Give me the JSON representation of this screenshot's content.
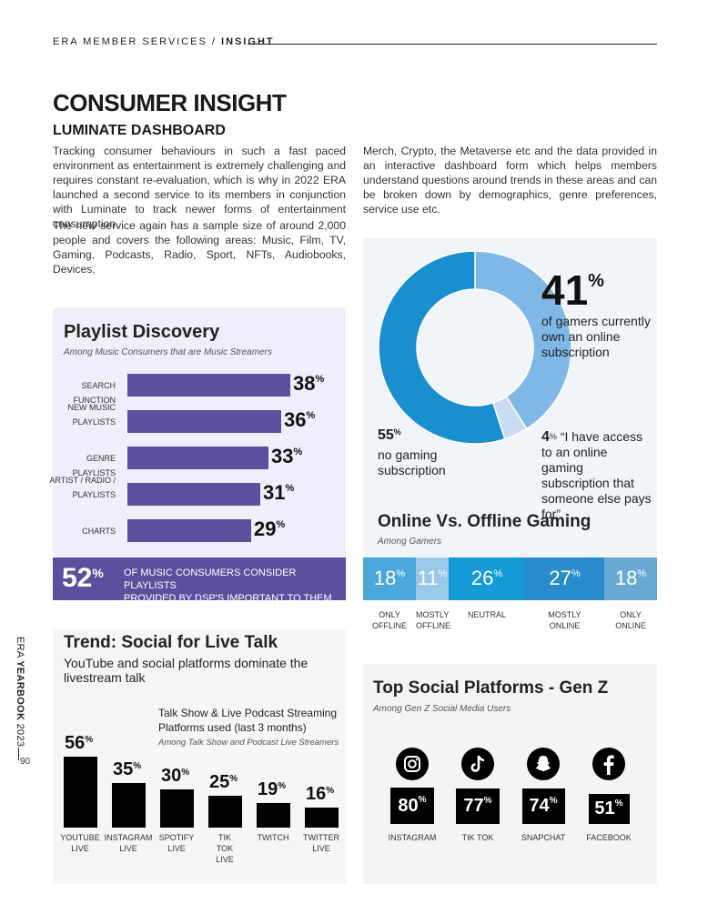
{
  "header": {
    "section": "ERA MEMBER SERVICES / ",
    "page": "INSIGHT"
  },
  "title": "CONSUMER INSIGHT",
  "subtitle": "LUMINATE DASHBOARD",
  "paragraphs": {
    "p1": "Tracking consumer behaviours in such a fast paced environment as entertainment is extremely challenging and requires constant re-evaluation, which is why in 2022 ERA launched a second service to its members in conjunction with Luminate to track newer forms of entertainment consumption.",
    "p2": "The new service again has a sample size of around 2,000 people and covers the following areas: Music, Film, TV, Gaming, Podcasts, Radio, Sport, NFTs, Audiobooks, Devices,",
    "p3": "Merch, Crypto, the Metaverse etc and the data provided in an interactive dashboard form which helps members understand questions around trends in these areas and can be broken down by demographics, genre preferences, service use etc."
  },
  "playlist": {
    "title": "Playlist Discovery",
    "subtitle": "Among Music Consumers that are Music Streamers",
    "footer_pct": "52",
    "footer_pct_sign": "%",
    "footer_text_1": "OF MUSIC CONSUMERS CONSIDER PLAYLISTS",
    "footer_text_2": "PROVIDED BY DSP'S IMPORTANT TO THEM",
    "bar_color": "#5d4f9e"
  },
  "gaming": {
    "big_pct": "41",
    "big_text_1": "of gamers currently",
    "big_text_2": "own an online",
    "big_text_3": "subscription",
    "no_pct": "55",
    "no_text_1": "no gaming",
    "no_text_2": "subscription",
    "other_pct": "4",
    "other_text_1": "“I have access",
    "other_text_2": "to an online gaming",
    "other_text_3": "subscription that",
    "other_text_4": "someone else pays for”",
    "title": "Online Vs. Offline Gaming",
    "subtitle": "Among Gamers",
    "pct_sign": "%"
  },
  "live": {
    "title": "Trend: Social for Live Talk",
    "subtitle": "YouTube and social platforms dominate the livestream talk",
    "chart_title": "Talk Show & Live Podcast Streaming Platforms used (last 3 months)",
    "chart_subtitle": "Among Talk Show and Podcast Live Streamers",
    "pct_sign": "%"
  },
  "genz": {
    "title": "Top Social Platforms - Gen Z",
    "subtitle": "Among Gen Z Social Media Users",
    "pct_sign": "%"
  },
  "side": {
    "prefix": "ERA ",
    "bold": "YEARBOOK",
    "year": " 2023",
    "page": "90"
  },
  "chart_data": [
    {
      "type": "bar",
      "orientation": "horizontal",
      "title": "Playlist Discovery",
      "subtitle": "Among Music Consumers that are Music Streamers",
      "categories": [
        "SEARCH FUNCTION",
        "NEW MUSIC PLAYLISTS",
        "GENRE PLAYLISTS",
        "ARTIST / RADIO / PLAYLISTS",
        "CHARTS"
      ],
      "values": [
        38,
        36,
        33,
        31,
        29
      ],
      "unit": "%",
      "xlim": [
        0,
        40
      ]
    },
    {
      "type": "pie",
      "title": "Gaming subscription",
      "categories": [
        "own an online subscription",
        "access paid by someone else",
        "no gaming subscription"
      ],
      "values": [
        41,
        4,
        55
      ],
      "colors": [
        "#7fb7e6",
        "#c9dcf2",
        "#1a8fd0"
      ],
      "unit": "%"
    },
    {
      "type": "bar",
      "orientation": "stacked-100",
      "title": "Online Vs. Offline Gaming",
      "subtitle": "Among Gamers",
      "categories": [
        "ONLY OFFLINE",
        "MOSTLY OFFLINE",
        "NEUTRAL",
        "MOSTLY ONLINE",
        "ONLY ONLINE"
      ],
      "values": [
        18,
        11,
        26,
        27,
        18
      ],
      "colors": [
        "#4aa8dc",
        "#9bc8e6",
        "#149ad6",
        "#2a8ccc",
        "#6aaad2"
      ],
      "unit": "%"
    },
    {
      "type": "bar",
      "title": "Talk Show & Live Podcast Streaming Platforms used (last 3 months)",
      "subtitle": "Among Talk Show and Podcast Live Streamers",
      "categories": [
        "YOUTUBE LIVE",
        "INSTAGRAM LIVE",
        "SPOTIFY LIVE",
        "TIK TOK LIVE",
        "TWITCH",
        "TWITTER LIVE"
      ],
      "values": [
        56,
        35,
        30,
        25,
        19,
        16
      ],
      "unit": "%",
      "ylim": [
        0,
        60
      ]
    },
    {
      "type": "bar",
      "title": "Top Social Platforms - Gen Z",
      "subtitle": "Among Gen Z Social Media Users",
      "categories": [
        "INSTAGRAM",
        "TIK TOK",
        "SNAPCHAT",
        "FACEBOOK"
      ],
      "icons": [
        "instagram-icon",
        "tiktok-icon",
        "snapchat-icon",
        "facebook-icon"
      ],
      "values": [
        80,
        77,
        74,
        51
      ],
      "unit": "%",
      "ylim": [
        0,
        80
      ]
    }
  ]
}
